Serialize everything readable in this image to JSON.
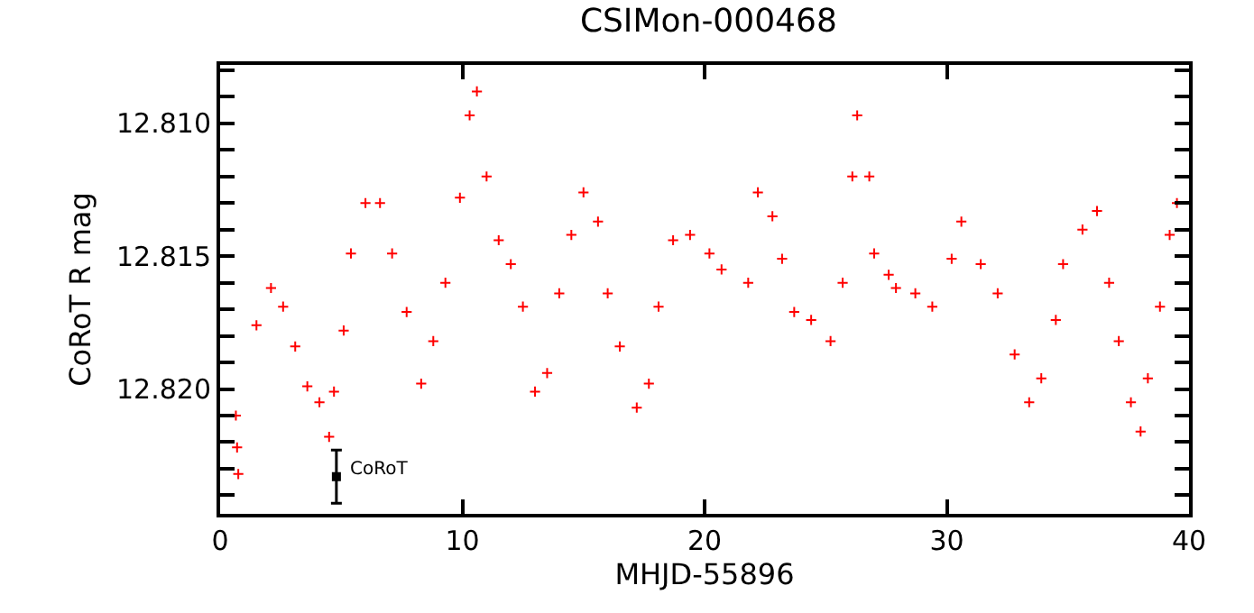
{
  "chart_data": {
    "type": "scatter",
    "title": "CSIMon-000468",
    "xlabel": "MHJD-55896",
    "ylabel": "CoRoT R mag",
    "marker": "cross",
    "grid": false,
    "xlim": [
      0,
      40
    ],
    "xticks": [
      0,
      10,
      20,
      30,
      40
    ],
    "ylim": [
      12.8247,
      12.8078
    ],
    "yticks": [
      {
        "value": 12.81,
        "label": "12.810"
      },
      {
        "value": 12.815,
        "label": "12.815"
      },
      {
        "value": 12.82,
        "label": "12.820"
      },
      {
        "value": 12.808,
        "label": null
      },
      {
        "value": 12.809,
        "label": null
      },
      {
        "value": 12.811,
        "label": null
      },
      {
        "value": 12.812,
        "label": null
      },
      {
        "value": 12.813,
        "label": null
      },
      {
        "value": 12.814,
        "label": null
      },
      {
        "value": 12.816,
        "label": null
      },
      {
        "value": 12.817,
        "label": null
      },
      {
        "value": 12.818,
        "label": null
      },
      {
        "value": 12.819,
        "label": null
      },
      {
        "value": 12.821,
        "label": null
      },
      {
        "value": 12.822,
        "label": null
      },
      {
        "value": 12.823,
        "label": null
      },
      {
        "value": 12.824,
        "label": null
      }
    ],
    "series": [
      {
        "color": "#ff0000",
        "x": [
          0.65,
          0.7,
          0.75,
          1.5,
          2.1,
          2.6,
          3.1,
          3.6,
          4.1,
          4.5,
          4.7,
          5.1,
          5.4,
          6.0,
          6.6,
          7.1,
          7.7,
          8.3,
          8.8,
          9.3,
          9.9,
          10.3,
          10.6,
          11.0,
          11.5,
          12.0,
          12.5,
          13.0,
          13.5,
          14.0,
          14.5,
          15.0,
          15.6,
          16.0,
          16.5,
          17.2,
          17.7,
          18.1,
          18.7,
          19.4,
          20.2,
          20.7,
          21.8,
          22.2,
          22.8,
          23.2,
          23.7,
          24.4,
          25.2,
          25.7,
          26.1,
          26.3,
          26.8,
          27.0,
          27.6,
          27.9,
          28.7,
          29.4,
          30.2,
          30.6,
          31.4,
          32.1,
          32.8,
          33.4,
          33.9,
          34.5,
          34.8,
          35.6,
          36.2,
          36.7,
          37.1,
          37.6,
          38.0,
          38.3,
          38.8,
          39.2,
          39.5
        ],
        "values": [
          12.821,
          12.8222,
          12.8232,
          12.8176,
          12.8162,
          12.8169,
          12.8184,
          12.8199,
          12.8205,
          12.8218,
          12.8201,
          12.8178,
          12.8149,
          12.813,
          12.813,
          12.8149,
          12.8171,
          12.8198,
          12.8182,
          12.816,
          12.8128,
          12.8097,
          12.8088,
          12.812,
          12.8144,
          12.8153,
          12.8169,
          12.8201,
          12.8194,
          12.8164,
          12.8142,
          12.8126,
          12.8137,
          12.8164,
          12.8184,
          12.8207,
          12.8198,
          12.8169,
          12.8144,
          12.8142,
          12.8149,
          12.8155,
          12.816,
          12.8126,
          12.8135,
          12.8151,
          12.8171,
          12.8174,
          12.8182,
          12.816,
          12.812,
          12.8097,
          12.812,
          12.8149,
          12.8157,
          12.8162,
          12.8164,
          12.8169,
          12.8151,
          12.8137,
          12.8153,
          12.8164,
          12.8187,
          12.8205,
          12.8196,
          12.8174,
          12.8153,
          12.814,
          12.8133,
          12.816,
          12.8182,
          12.8205,
          12.8216,
          12.8196,
          12.8169,
          12.8142,
          12.813
        ]
      },
      {
        "color": "#000000",
        "marker": "square",
        "x": [
          4.8
        ],
        "values": [
          12.8233
        ],
        "errors": [
          0.001
        ]
      }
    ],
    "annotations": [
      {
        "text": "CoRoT",
        "x": 4.8,
        "y": 12.8233
      }
    ]
  }
}
